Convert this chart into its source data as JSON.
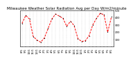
{
  "title": "Milwaukee Weather Solar Radiation Avg per Day W/m2/minute",
  "x_labels": [
    "8/1",
    "9/1",
    "10/1",
    "11/1",
    "12/1",
    "1/1",
    "2/1",
    "3/1",
    "4/1",
    "5/1",
    "6/1",
    "7/1",
    "8/1",
    "9/1",
    "10/1",
    "11/1",
    "12/1",
    "1/1",
    "2/1",
    "3/1",
    "4/1",
    "5/1",
    "6/1",
    "7/1",
    "8/1"
  ],
  "values": [
    320,
    430,
    380,
    140,
    90,
    60,
    120,
    250,
    380,
    450,
    420,
    390,
    280,
    350,
    290,
    110,
    70,
    80,
    150,
    300,
    390,
    460,
    440,
    200,
    410
  ],
  "line_color": "#ff0000",
  "bg_color": "#ffffff",
  "ylim": [
    0,
    500
  ],
  "ytick_vals": [
    100,
    200,
    300,
    400,
    500
  ],
  "grid_color": "#888888",
  "title_fontsize": 4.0,
  "tick_fontsize": 2.8
}
